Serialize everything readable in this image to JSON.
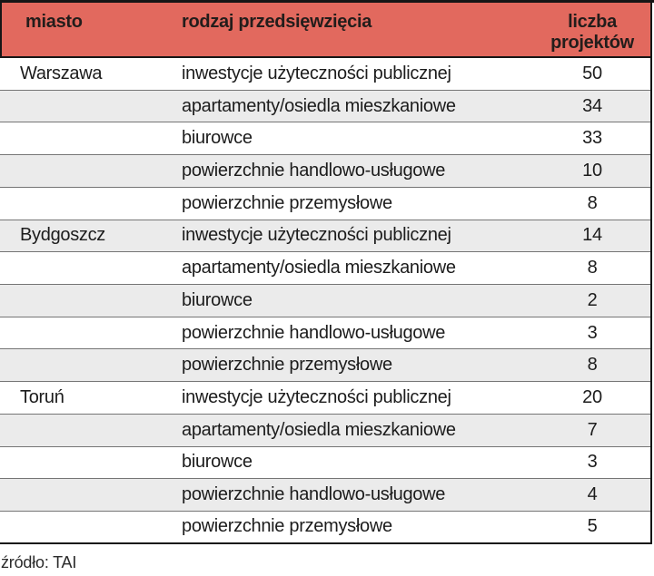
{
  "table": {
    "headers": {
      "city": "miasto",
      "type": "rodzaj przedsięwzięcia",
      "count": "liczba projektów"
    },
    "rows": [
      {
        "city": "Warszawa",
        "type": "inwestycje użyteczności publicznej",
        "count": "50"
      },
      {
        "city": "",
        "type": "apartamenty/osiedla mieszkaniowe",
        "count": "34"
      },
      {
        "city": "",
        "type": "biurowce",
        "count": "33"
      },
      {
        "city": "",
        "type": "powierzchnie handlowo-usługowe",
        "count": "10"
      },
      {
        "city": "",
        "type": "powierzchnie przemysłowe",
        "count": "8"
      },
      {
        "city": "Bydgoszcz",
        "type": "inwestycje użyteczności publicznej",
        "count": "14"
      },
      {
        "city": "",
        "type": "apartamenty/osiedla mieszkaniowe",
        "count": "8"
      },
      {
        "city": "",
        "type": "biurowce",
        "count": "2"
      },
      {
        "city": "",
        "type": "powierzchnie handlowo-usługowe",
        "count": "3"
      },
      {
        "city": "",
        "type": "powierzchnie przemysłowe",
        "count": "8"
      },
      {
        "city": "Toruń",
        "type": "inwestycje użyteczności publicznej",
        "count": "20"
      },
      {
        "city": "",
        "type": "apartamenty/osiedla mieszkaniowe",
        "count": "7"
      },
      {
        "city": "",
        "type": "biurowce",
        "count": "3"
      },
      {
        "city": "",
        "type": "powierzchnie handlowo-usługowe",
        "count": "4"
      },
      {
        "city": "",
        "type": "powierzchnie przemysłowe",
        "count": "5"
      }
    ]
  },
  "source": "źródło: TAI",
  "colors": {
    "header-bg": "#e2695e",
    "header-text": "#231d1b",
    "row-text": "#1c1c1c",
    "row-alt-bg": "#ebebeb",
    "divider": "#757575",
    "border-strong": "#161616",
    "source-text": "#2b2b2b"
  },
  "chart_data": {
    "type": "table",
    "columns": [
      "miasto",
      "rodzaj przedsięwzięcia",
      "liczba projektów"
    ],
    "rows": [
      [
        "Warszawa",
        "inwestycje użyteczności publicznej",
        50
      ],
      [
        "Warszawa",
        "apartamenty/osiedla mieszkaniowe",
        34
      ],
      [
        "Warszawa",
        "biurowce",
        33
      ],
      [
        "Warszawa",
        "powierzchnie handlowo-usługowe",
        10
      ],
      [
        "Warszawa",
        "powierzchnie przemysłowe",
        8
      ],
      [
        "Bydgoszcz",
        "inwestycje użyteczności publicznej",
        14
      ],
      [
        "Bydgoszcz",
        "apartamenty/osiedla mieszkaniowe",
        8
      ],
      [
        "Bydgoszcz",
        "biurowce",
        2
      ],
      [
        "Bydgoszcz",
        "powierzchnie handlowo-usługowe",
        3
      ],
      [
        "Bydgoszcz",
        "powierzchnie przemysłowe",
        8
      ],
      [
        "Toruń",
        "inwestycje użyteczności publicznej",
        20
      ],
      [
        "Toruń",
        "apartamenty/osiedla mieszkaniowe",
        7
      ],
      [
        "Toruń",
        "biurowce",
        3
      ],
      [
        "Toruń",
        "powierzchnie handlowo-usługowe",
        4
      ],
      [
        "Toruń",
        "powierzchnie przemysłowe",
        5
      ]
    ],
    "zebra_striping": true,
    "source": "źródło: TAI"
  }
}
